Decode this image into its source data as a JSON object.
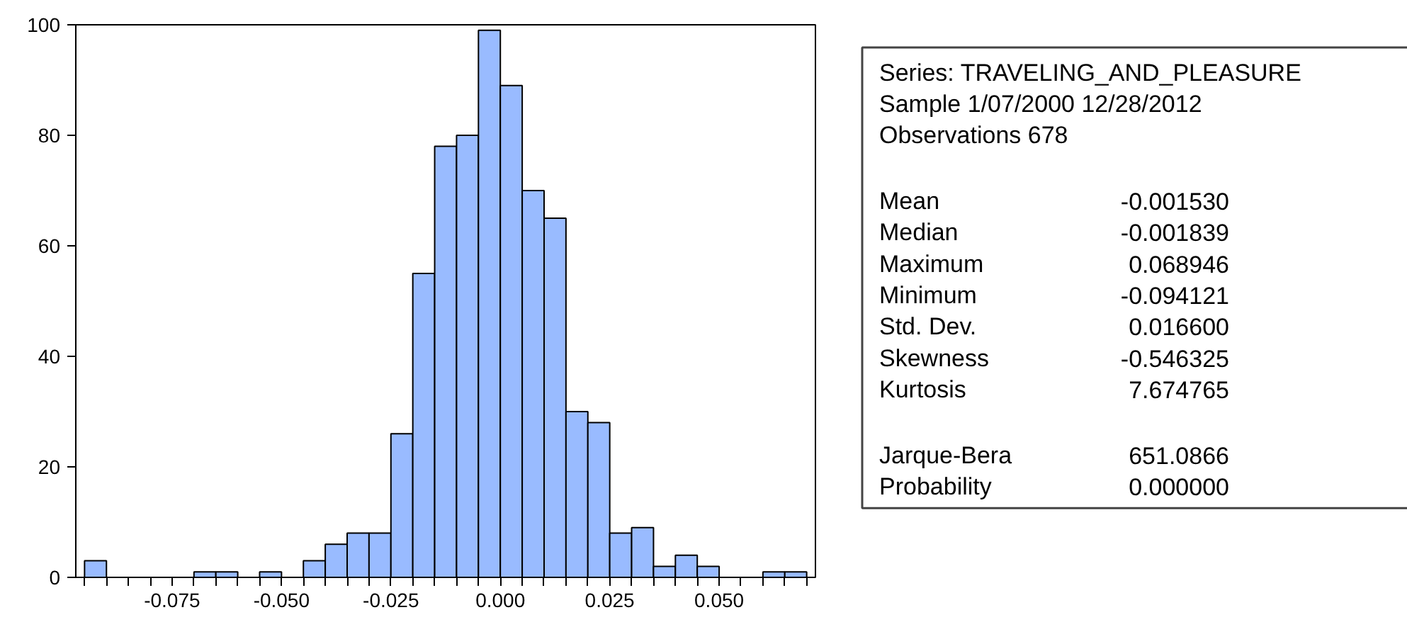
{
  "chart_data": {
    "type": "histogram",
    "bins": [
      -0.095,
      -0.09,
      -0.085,
      -0.08,
      -0.075,
      -0.07,
      -0.065,
      -0.06,
      -0.055,
      -0.05,
      -0.045,
      -0.04,
      -0.035,
      -0.03,
      -0.025,
      -0.02,
      -0.015,
      -0.01,
      -0.005,
      0.0,
      0.005,
      0.01,
      0.015,
      0.02,
      0.025,
      0.03,
      0.035,
      0.04,
      0.045,
      0.05,
      0.055,
      0.06,
      0.065,
      0.07
    ],
    "values": [
      3,
      0,
      0,
      0,
      0,
      1,
      1,
      0,
      1,
      0,
      3,
      6,
      8,
      8,
      26,
      55,
      78,
      80,
      99,
      89,
      70,
      65,
      30,
      28,
      8,
      9,
      2,
      4,
      2,
      0,
      0,
      1,
      1
    ],
    "color": "#99bbff",
    "xlim": [
      -0.097,
      0.072
    ],
    "ylim": [
      0,
      100
    ],
    "xticks": [
      {
        "value": -0.095,
        "label": null
      },
      {
        "value": -0.09,
        "label": null
      },
      {
        "value": -0.085,
        "label": null
      },
      {
        "value": -0.08,
        "label": null
      },
      {
        "value": -0.075,
        "label": "-0.075"
      },
      {
        "value": -0.07,
        "label": null
      },
      {
        "value": -0.065,
        "label": null
      },
      {
        "value": -0.06,
        "label": null
      },
      {
        "value": -0.055,
        "label": null
      },
      {
        "value": -0.05,
        "label": "-0.050"
      },
      {
        "value": -0.045,
        "label": null
      },
      {
        "value": -0.04,
        "label": null
      },
      {
        "value": -0.035,
        "label": null
      },
      {
        "value": -0.03,
        "label": null
      },
      {
        "value": -0.025,
        "label": "-0.025"
      },
      {
        "value": -0.02,
        "label": null
      },
      {
        "value": -0.015,
        "label": null
      },
      {
        "value": -0.01,
        "label": null
      },
      {
        "value": -0.005,
        "label": null
      },
      {
        "value": 0.0,
        "label": "0.000"
      },
      {
        "value": 0.005,
        "label": null
      },
      {
        "value": 0.01,
        "label": null
      },
      {
        "value": 0.015,
        "label": null
      },
      {
        "value": 0.02,
        "label": null
      },
      {
        "value": 0.025,
        "label": "0.025"
      },
      {
        "value": 0.03,
        "label": null
      },
      {
        "value": 0.035,
        "label": null
      },
      {
        "value": 0.04,
        "label": null
      },
      {
        "value": 0.045,
        "label": null
      },
      {
        "value": 0.05,
        "label": "0.050"
      },
      {
        "value": 0.055,
        "label": null
      },
      {
        "value": 0.06,
        "label": null
      },
      {
        "value": 0.065,
        "label": null
      },
      {
        "value": 0.07,
        "label": null
      }
    ],
    "yticks": [
      0,
      20,
      40,
      60,
      80,
      100
    ],
    "grid": false,
    "annotations": [
      "Series: TRAVELING_AND_PLEASURE",
      "Sample 1/07/2000 12/28/2012",
      "Observations 678",
      "Mean -0.001530",
      "Median -0.001839",
      "Maximum 0.068946",
      "Minimum -0.094121",
      "Std. Dev. 0.016600",
      "Skewness -0.546325",
      "Kurtosis 7.674765",
      "Jarque-Bera 651.0866",
      "Probability 0.000000"
    ]
  }
}
